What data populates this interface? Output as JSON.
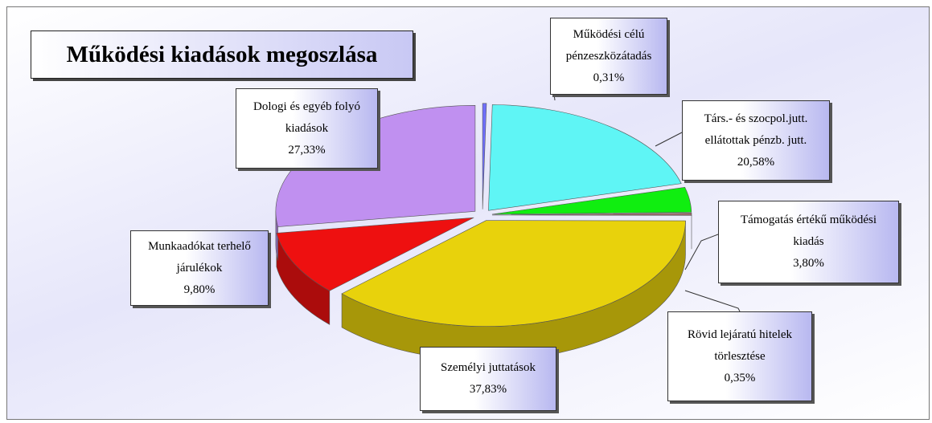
{
  "chart_data": {
    "type": "pie",
    "title": "Működési kiadások megoszlása",
    "categories": [
      "Működési célú pénzeszközátadás",
      "Társ.- és szocpol.jutt. ellátottak pénzb. jutt.",
      "Támogatás értékű működési kiadás",
      "Rövid lejáratú hitelek törlesztése",
      "Személyi juttatások",
      "Munkaadókat terhelő járulékok",
      "Dologi és egyéb folyó kiadások"
    ],
    "values": [
      0.31,
      20.58,
      3.8,
      0.35,
      37.83,
      9.8,
      27.33
    ],
    "value_labels": [
      "0,31%",
      "20,58%",
      "3,80%",
      "0,35%",
      "37,83%",
      "9,80%",
      "27,33%"
    ],
    "colors": [
      "#6f6fff",
      "#5ff5f5",
      "#10ee10",
      "#9a6a6a",
      "#e8d20c",
      "#ee1010",
      "#c090f0"
    ]
  }
}
